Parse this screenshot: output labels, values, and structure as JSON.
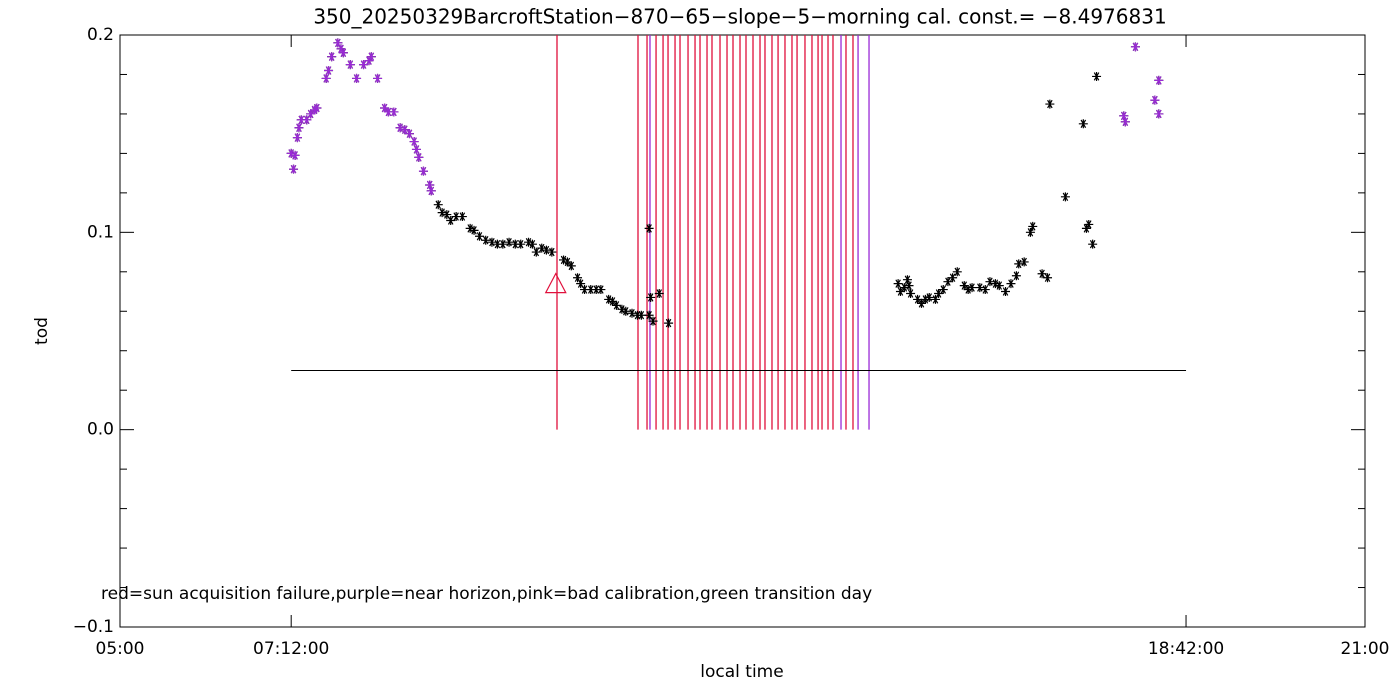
{
  "chart_data": {
    "type": "scatter",
    "title": "350_20250329BarcroftStation−870−65−slope−5−morning cal. const.= −8.4976831",
    "xlabel": "local time",
    "ylabel": "tod",
    "annotation": "red=sun acquisition failure,purple=near horizon,pink=bad calibration,green transition day",
    "xlim": [
      5,
      21
    ],
    "xticks": [
      {
        "value": 5,
        "label": "05:00"
      },
      {
        "value": 7.2,
        "label": "07:12:00"
      },
      {
        "value": 18.7,
        "label": "18:42:00"
      },
      {
        "value": 21,
        "label": "21:00"
      }
    ],
    "ylim": [
      -0.1,
      0.2
    ],
    "yticks": [
      {
        "value": -0.1,
        "label": "−0.1"
      },
      {
        "value": 0,
        "label": "0.0"
      },
      0.1,
      0.2
    ],
    "y_minor_ticks": [
      -0.08,
      -0.06,
      -0.04,
      -0.02,
      0.02,
      0.04,
      0.06,
      0.08,
      0.12,
      0.14,
      0.16,
      0.18
    ],
    "series": [
      {
        "color": "#000000",
        "x": [
          7.2,
          7.23,
          7.25,
          7.28,
          7.3,
          7.33,
          7.4,
          7.45,
          7.5,
          7.53,
          7.65,
          7.68,
          7.72,
          7.8,
          7.84,
          7.87,
          7.96,
          8.04,
          8.13,
          8.2,
          8.23,
          8.31,
          8.4,
          8.45,
          8.52,
          8.6,
          8.66,
          8.72,
          8.78,
          8.81,
          8.84,
          8.9,
          8.98,
          9.0,
          9.09,
          9.14,
          9.2,
          9.25,
          9.32,
          9.4,
          9.5,
          9.55,
          9.62,
          9.7,
          9.78,
          9.85,
          9.92,
          10.0,
          10.08,
          10.15,
          10.25,
          10.3,
          10.35,
          10.42,
          10.48,
          10.55,
          10.7,
          10.75,
          10.8,
          10.88,
          10.92,
          10.97,
          11.05,
          11.12,
          11.18,
          11.28,
          11.33,
          11.38,
          11.45,
          11.5,
          11.58,
          11.65,
          11.7,
          11.8,
          11.85,
          11.82,
          11.8,
          11.93,
          12.05,
          15.0,
          15.03,
          15.08,
          15.12,
          15.14,
          15.16,
          15.25,
          15.3,
          15.35,
          15.4,
          15.48,
          15.52,
          15.58,
          15.64,
          15.7,
          15.76,
          15.85,
          15.9,
          15.95,
          16.05,
          16.12,
          16.18,
          16.25,
          16.3,
          16.38,
          16.45,
          16.52,
          16.55,
          16.62,
          16.7,
          16.73,
          16.85,
          16.92,
          16.95,
          17.15,
          17.38,
          17.42,
          17.45,
          17.5,
          17.55,
          17.9,
          17.92,
          18.05,
          18.3,
          18.35,
          18.35
        ],
        "values": [
          0.14,
          0.132,
          0.139,
          0.148,
          0.153,
          0.157,
          0.157,
          0.16,
          0.162,
          0.163,
          0.178,
          0.182,
          0.189,
          0.196,
          0.193,
          0.191,
          0.185,
          0.178,
          0.185,
          0.187,
          0.189,
          0.178,
          0.163,
          0.161,
          0.161,
          0.153,
          0.152,
          0.15,
          0.146,
          0.142,
          0.138,
          0.131,
          0.124,
          0.121,
          0.114,
          0.11,
          0.109,
          0.106,
          0.108,
          0.108,
          0.102,
          0.101,
          0.098,
          0.096,
          0.095,
          0.094,
          0.094,
          0.095,
          0.094,
          0.094,
          0.095,
          0.094,
          0.09,
          0.092,
          0.091,
          0.09,
          0.086,
          0.085,
          0.083,
          0.077,
          0.074,
          0.071,
          0.071,
          0.071,
          0.071,
          0.066,
          0.065,
          0.063,
          0.061,
          0.06,
          0.059,
          0.058,
          0.058,
          0.058,
          0.055,
          0.067,
          0.102,
          0.069,
          0.054,
          0.074,
          0.07,
          0.072,
          0.076,
          0.073,
          0.069,
          0.066,
          0.064,
          0.066,
          0.067,
          0.066,
          0.069,
          0.071,
          0.075,
          0.077,
          0.08,
          0.073,
          0.071,
          0.072,
          0.072,
          0.071,
          0.075,
          0.074,
          0.073,
          0.07,
          0.074,
          0.078,
          0.084,
          0.085,
          0.1,
          0.103,
          0.079,
          0.077,
          0.165,
          0.118,
          0.155,
          0.102,
          0.104,
          0.094,
          0.179,
          0.159,
          0.156,
          0.194,
          0.167,
          0.16,
          0.177
        ]
      },
      {
        "color": "#9a2ad6",
        "x": [
          7.2,
          7.23,
          7.25,
          7.28,
          7.3,
          7.33,
          7.4,
          7.45,
          7.5,
          7.53,
          7.65,
          7.68,
          7.72,
          7.8,
          7.84,
          7.87,
          7.96,
          8.04,
          8.13,
          8.2,
          8.23,
          8.31,
          8.4,
          8.45,
          8.52,
          8.6,
          8.66,
          8.72,
          8.78,
          8.81,
          8.84,
          8.9,
          8.98,
          9.0,
          17.9,
          17.92,
          18.05,
          18.3,
          18.35,
          18.35
        ],
        "values": [
          0.14,
          0.132,
          0.139,
          0.148,
          0.153,
          0.157,
          0.157,
          0.16,
          0.162,
          0.163,
          0.178,
          0.182,
          0.189,
          0.196,
          0.193,
          0.191,
          0.185,
          0.178,
          0.185,
          0.187,
          0.189,
          0.178,
          0.163,
          0.161,
          0.161,
          0.153,
          0.152,
          0.15,
          0.146,
          0.142,
          0.138,
          0.131,
          0.124,
          0.121,
          0.159,
          0.156,
          0.194,
          0.167,
          0.16,
          0.177
        ]
      }
    ],
    "vlines_red": {
      "color": "#e0103c",
      "x": [
        10.616,
        11.657,
        11.773,
        11.889,
        11.979,
        12.043,
        12.133,
        12.197,
        12.3,
        12.39,
        12.454,
        12.544,
        12.608,
        12.711,
        12.801,
        12.878,
        12.968,
        13.045,
        13.135,
        13.225,
        13.289,
        13.379,
        13.457,
        13.546,
        13.636,
        13.701,
        13.803,
        13.893,
        13.971,
        14.022,
        14.099,
        14.163,
        14.33,
        14.42
      ]
    },
    "vlines_purple": {
      "color": "#9a2ad6",
      "x": [
        11.811,
        14.266,
        14.485,
        14.626
      ]
    },
    "hline": {
      "color": "#000000",
      "y": 0.03,
      "x": [
        7.2,
        18.7
      ]
    },
    "triangle": {
      "color": "#e0103c",
      "x": 10.6,
      "y": 0.073
    }
  }
}
